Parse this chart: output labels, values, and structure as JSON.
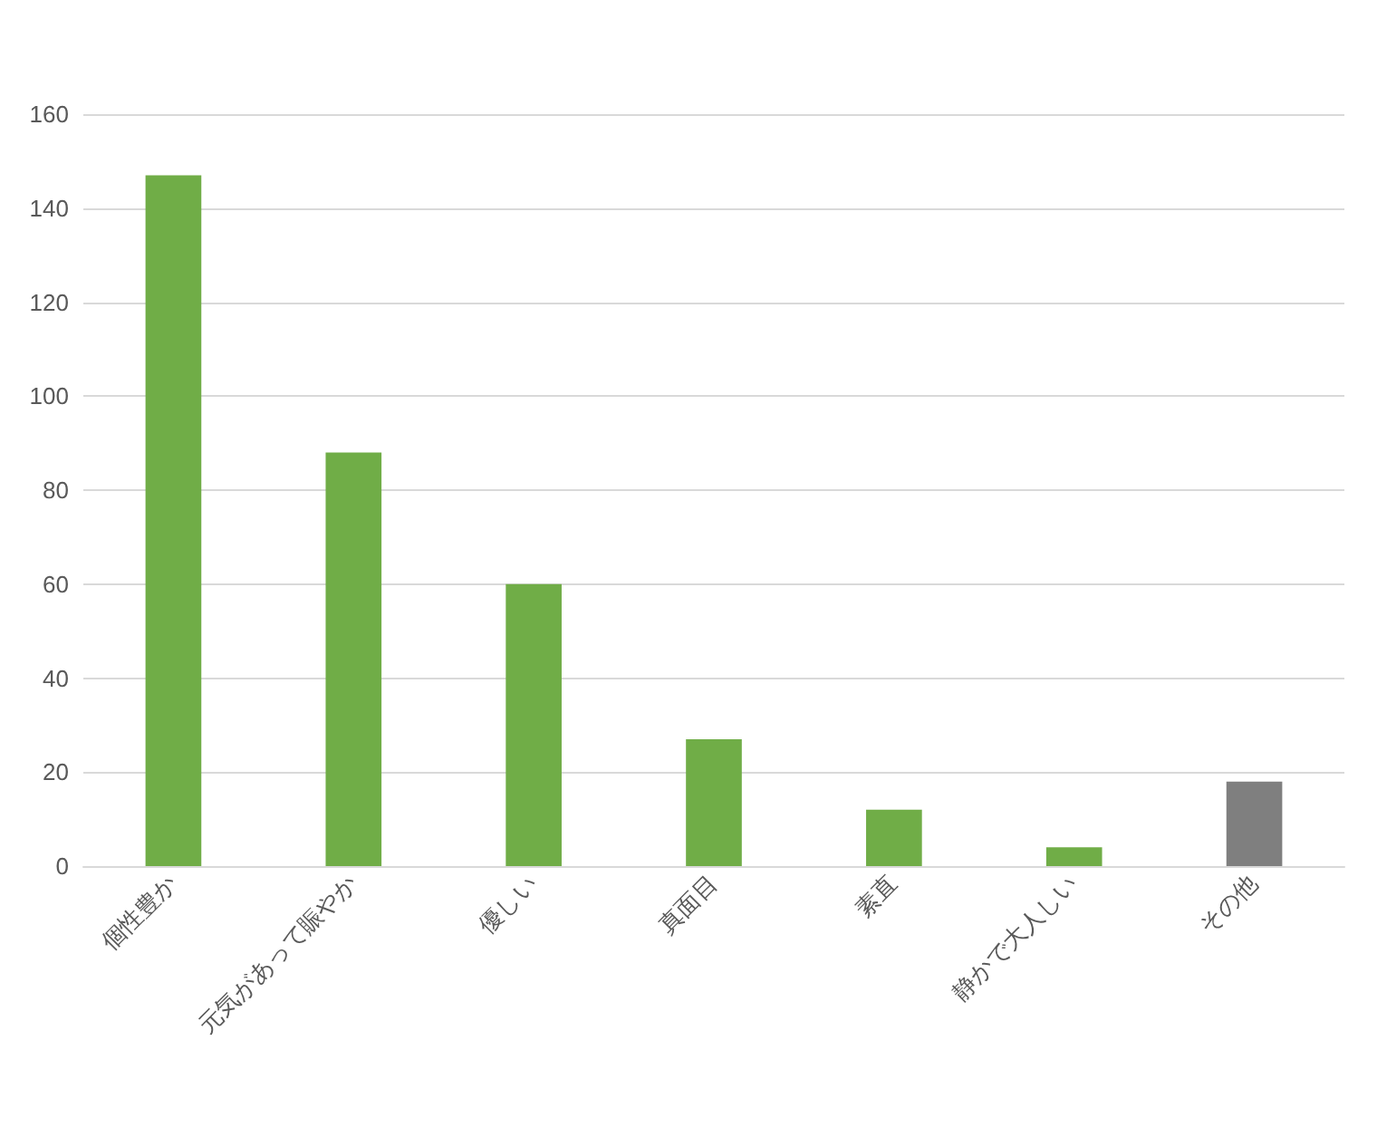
{
  "chart_data": {
    "type": "bar",
    "categories": [
      "個性豊か",
      "元気があって賑やか",
      "優しい",
      "真面目",
      "素直",
      "静かで大人しい",
      "その他"
    ],
    "values": [
      147,
      88,
      60,
      27,
      12,
      4,
      18
    ],
    "colors": [
      "#70ad47",
      "#70ad47",
      "#70ad47",
      "#70ad47",
      "#70ad47",
      "#70ad47",
      "#7f7f7f"
    ],
    "ylim": [
      0,
      160
    ],
    "yticks": [
      0,
      20,
      40,
      60,
      80,
      100,
      120,
      140,
      160
    ],
    "grid": "y"
  }
}
